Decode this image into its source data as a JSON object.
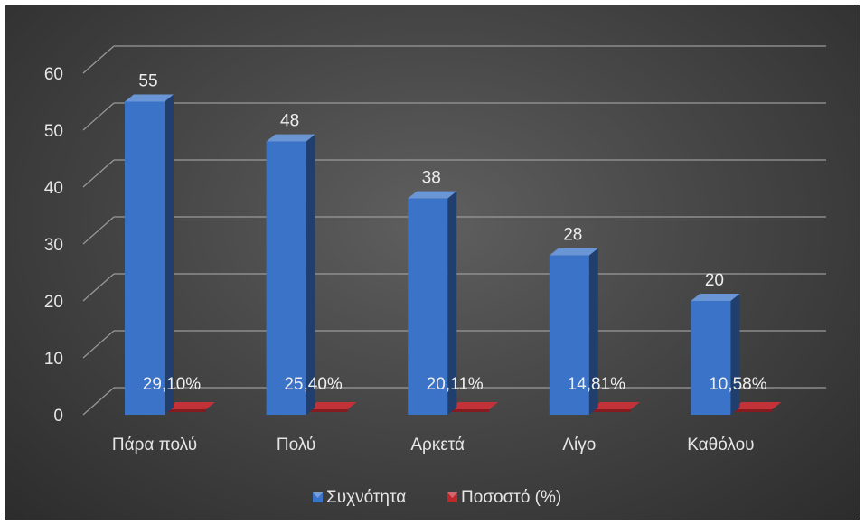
{
  "chart_data": {
    "type": "bar",
    "title": "",
    "xlabel": "",
    "ylabel": "",
    "ylim": [
      0,
      60
    ],
    "yticks": [
      0,
      10,
      20,
      30,
      40,
      50,
      60
    ],
    "grid": true,
    "legend_position": "bottom",
    "categories": [
      "Πάρα πολύ",
      "Πολύ",
      "Αρκετά",
      "Λίγο",
      "Καθόλου"
    ],
    "series": [
      {
        "name": "Συχνότητα",
        "color": "#3a73c8",
        "values": [
          55,
          48,
          38,
          28,
          20
        ],
        "labels": [
          "55",
          "48",
          "38",
          "28",
          "20"
        ]
      },
      {
        "name": "Ποσοστό (%)",
        "color": "#c0272d",
        "values": [
          29.1,
          25.4,
          20.11,
          14.81,
          10.58
        ],
        "labels": [
          "29,10%",
          "25,40%",
          "20,11%",
          "14,81%",
          "10,58%"
        ]
      }
    ]
  }
}
